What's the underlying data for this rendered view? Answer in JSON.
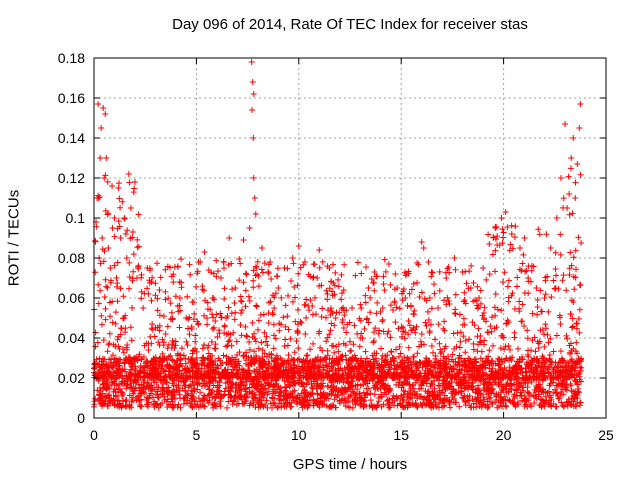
{
  "chart_data": {
    "type": "scatter",
    "title": "Day 096 of 2014, Rate Of TEC Index for receiver stas",
    "xlabel": "GPS time / hours",
    "ylabel": "ROTI / TECUs",
    "xlim": [
      0,
      25
    ],
    "ylim": [
      0,
      0.18
    ],
    "x_ticks": [
      "0",
      "5",
      "10",
      "15",
      "20",
      "25"
    ],
    "y_ticks": [
      "0",
      "0.02",
      "0.04",
      "0.06",
      "0.08",
      "0.1",
      "0.12",
      "0.14",
      "0.16",
      "0.18"
    ],
    "grid": true,
    "marker": "+",
    "color": "#ff0000",
    "data_extent_hours": [
      0,
      23.8
    ],
    "series": [
      {
        "name": "ROTI",
        "points": [
          [
            0.1,
            0.098
          ],
          [
            0.15,
            0.11
          ],
          [
            0.2,
            0.157
          ],
          [
            0.3,
            0.13
          ],
          [
            0.35,
            0.145
          ],
          [
            0.45,
            0.155
          ],
          [
            0.5,
            0.12
          ],
          [
            0.55,
            0.152
          ],
          [
            0.6,
            0.13
          ],
          [
            0.25,
            0.08
          ],
          [
            0.4,
            0.09
          ],
          [
            0.7,
            0.085
          ],
          [
            0.8,
            0.075
          ],
          [
            0.9,
            0.095
          ],
          [
            1.0,
            0.1
          ],
          [
            1.1,
            0.07
          ],
          [
            1.2,
            0.115
          ],
          [
            1.3,
            0.09
          ],
          [
            1.5,
            0.1
          ],
          [
            1.6,
            0.08
          ],
          [
            1.7,
            0.122
          ],
          [
            1.8,
            0.105
          ],
          [
            1.9,
            0.093
          ],
          [
            2.0,
            0.118
          ],
          [
            2.1,
            0.07
          ],
          [
            2.4,
            0.055
          ],
          [
            2.6,
            0.075
          ],
          [
            3.0,
            0.045
          ],
          [
            3.2,
            0.064
          ],
          [
            3.5,
            0.042
          ],
          [
            3.8,
            0.035
          ],
          [
            4.2,
            0.06
          ],
          [
            4.5,
            0.05
          ],
          [
            4.8,
            0.058
          ],
          [
            5.1,
            0.078
          ],
          [
            5.4,
            0.083
          ],
          [
            5.8,
            0.06
          ],
          [
            6.2,
            0.07
          ],
          [
            6.6,
            0.09
          ],
          [
            6.9,
            0.065
          ],
          [
            7.3,
            0.089
          ],
          [
            7.6,
            0.095
          ],
          [
            7.7,
            0.178
          ],
          [
            7.75,
            0.168
          ],
          [
            7.8,
            0.162
          ],
          [
            7.72,
            0.154
          ],
          [
            7.78,
            0.14
          ],
          [
            7.8,
            0.12
          ],
          [
            7.85,
            0.11
          ],
          [
            7.9,
            0.102
          ],
          [
            8.2,
            0.085
          ],
          [
            8.6,
            0.078
          ],
          [
            9.0,
            0.065
          ],
          [
            9.3,
            0.075
          ],
          [
            9.7,
            0.08
          ],
          [
            10.0,
            0.086
          ],
          [
            10.3,
            0.078
          ],
          [
            10.7,
            0.07
          ],
          [
            11.0,
            0.084
          ],
          [
            11.4,
            0.062
          ],
          [
            11.8,
            0.05
          ],
          [
            12.2,
            0.045
          ],
          [
            12.6,
            0.055
          ],
          [
            13.0,
            0.04
          ],
          [
            13.4,
            0.065
          ],
          [
            13.7,
            0.073
          ],
          [
            14.1,
            0.055
          ],
          [
            14.4,
            0.077
          ],
          [
            14.8,
            0.065
          ],
          [
            15.2,
            0.06
          ],
          [
            15.6,
            0.045
          ],
          [
            16.0,
            0.088
          ],
          [
            16.1,
            0.085
          ],
          [
            16.4,
            0.06
          ],
          [
            16.8,
            0.055
          ],
          [
            17.2,
            0.07
          ],
          [
            17.6,
            0.08
          ],
          [
            18.0,
            0.073
          ],
          [
            18.4,
            0.065
          ],
          [
            18.8,
            0.06
          ],
          [
            19.0,
            0.075
          ],
          [
            19.3,
            0.087
          ],
          [
            19.6,
            0.095
          ],
          [
            19.9,
            0.1
          ],
          [
            20.1,
            0.103
          ],
          [
            20.4,
            0.092
          ],
          [
            20.8,
            0.085
          ],
          [
            21.2,
            0.07
          ],
          [
            21.6,
            0.065
          ],
          [
            22.0,
            0.06
          ],
          [
            22.3,
            0.085
          ],
          [
            22.6,
            0.1
          ],
          [
            22.8,
            0.12
          ],
          [
            23.0,
            0.147
          ],
          [
            23.1,
            0.105
          ],
          [
            23.2,
            0.112
          ],
          [
            23.3,
            0.13
          ],
          [
            23.4,
            0.14
          ],
          [
            23.5,
            0.11
          ],
          [
            23.6,
            0.127
          ],
          [
            23.7,
            0.145
          ],
          [
            23.75,
            0.157
          ]
        ],
        "dense_band": {
          "baseline_range": [
            0.005,
            0.03
          ],
          "description": "continuous dense band of points across 0-23.8 h"
        }
      }
    ]
  }
}
